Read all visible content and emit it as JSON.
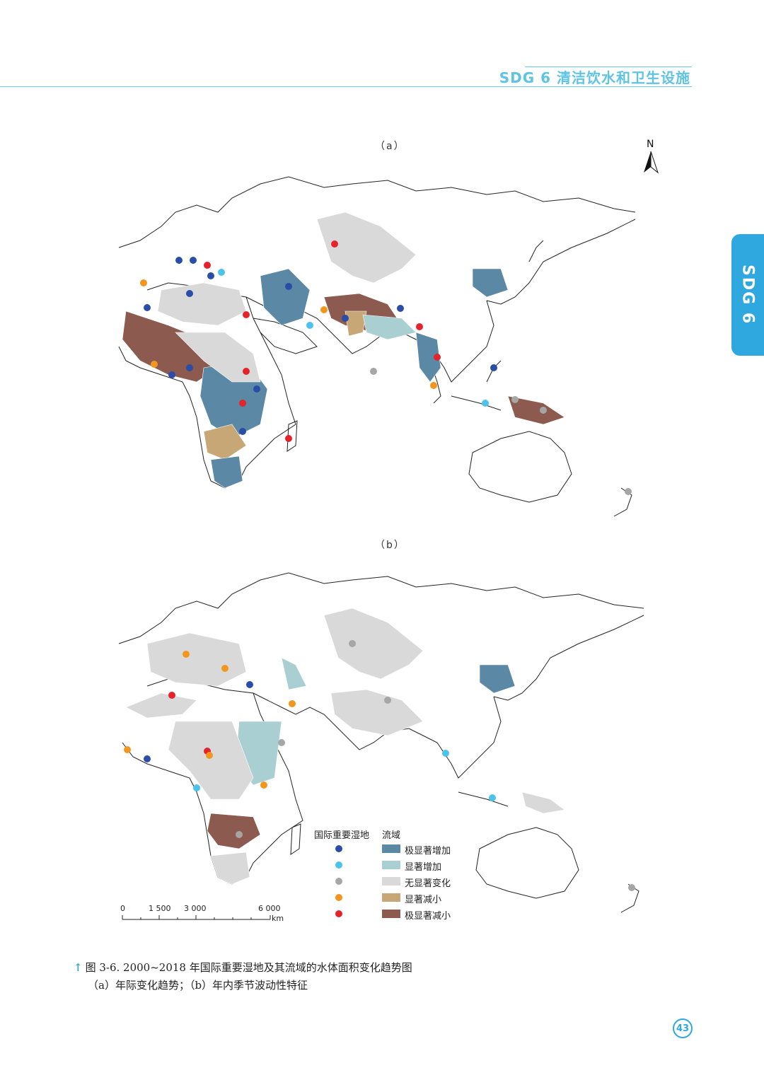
{
  "header": {
    "title": "SDG 6 清洁饮水和卫生设施"
  },
  "side_tab": {
    "label": "SDG 6"
  },
  "panels": {
    "a": "（a）",
    "b": "（b）"
  },
  "north_arrow": {
    "label": "N"
  },
  "legend": {
    "wetlands_title": "国际重要湿地",
    "basins_title": "流域",
    "items": [
      {
        "dot_color": "#2a4ea8",
        "fill": "#5b88a5",
        "label": "极显著增加"
      },
      {
        "dot_color": "#4cc3ec",
        "fill": "#a9cfd2",
        "label": "显著增加"
      },
      {
        "dot_color": "#a6a6a6",
        "fill": "#d9d9d9",
        "label": "无显著变化"
      },
      {
        "dot_color": "#f3961d",
        "fill": "#c8a777",
        "label": "显著减小"
      },
      {
        "dot_color": "#e4232a",
        "fill": "#8c5a4e",
        "label": "极显著减小"
      }
    ]
  },
  "scale_bar": {
    "ticks": [
      "0",
      "1 500",
      "3 000",
      "6 000"
    ],
    "unit": "km"
  },
  "caption": {
    "line1": "图 3-6. 2000~2018 年国际重要湿地及其流域的水体面积变化趋势图",
    "line2": "（a）年际变化趋势；（b）年内季节波动性特征"
  },
  "page_number": "43",
  "colors": {
    "accent": "#2ea8df",
    "very_sig_increase": "#5b88a5",
    "sig_increase": "#a9cfd2",
    "no_change": "#d9d9d9",
    "sig_decrease": "#c8a777",
    "very_sig_decrease": "#8c5a4e"
  }
}
